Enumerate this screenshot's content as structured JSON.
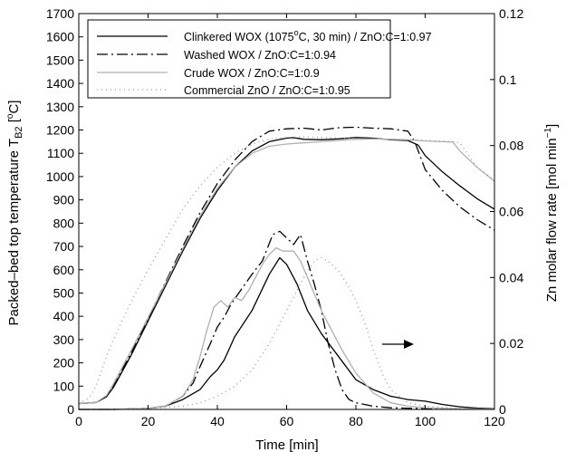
{
  "chart_data": {
    "type": "line",
    "xlabel": "Time [min]",
    "ylabel_left": "Packed–bed top temperature T",
    "ylabel_left_sub": "B2",
    "ylabel_left_unit": "[",
    "ylabel_left_unit_deg": "o",
    "ylabel_left_unit_end": "C]",
    "ylabel_right": "Zn molar flow rate [mol min",
    "ylabel_right_sup": "−1",
    "ylabel_right_end": "]",
    "xlim": [
      0,
      120
    ],
    "ylim_left": [
      0,
      1700
    ],
    "ylim_right": [
      0,
      0.12
    ],
    "x_ticks": [
      "0",
      "20",
      "40",
      "60",
      "80",
      "100",
      "120"
    ],
    "y_left_ticks": [
      "0",
      "100",
      "200",
      "300",
      "400",
      "500",
      "600",
      "700",
      "800",
      "900",
      "1000",
      "1100",
      "1200",
      "1300",
      "1400",
      "1500",
      "1600",
      "1700"
    ],
    "y_right_ticks": [
      "0",
      "0.02",
      "0.04",
      "0.06",
      "0.08",
      "0.1",
      "0.12"
    ],
    "grid": false,
    "legend_position": "top-right",
    "series": [
      {
        "name": "Clinkered WOX (1075",
        "name_sup": "o",
        "name_end": "C, 30 min) / ZnO:C=1:0.97",
        "color": "#000000",
        "style": "solid",
        "temperature": [
          [
            0,
            25
          ],
          [
            5,
            30
          ],
          [
            8,
            55
          ],
          [
            10,
            95
          ],
          [
            15,
            230
          ],
          [
            20,
            380
          ],
          [
            25,
            530
          ],
          [
            30,
            680
          ],
          [
            35,
            820
          ],
          [
            40,
            940
          ],
          [
            45,
            1040
          ],
          [
            50,
            1110
          ],
          [
            55,
            1150
          ],
          [
            60,
            1165
          ],
          [
            62,
            1167
          ],
          [
            65,
            1160
          ],
          [
            70,
            1158
          ],
          [
            75,
            1162
          ],
          [
            80,
            1168
          ],
          [
            85,
            1165
          ],
          [
            90,
            1158
          ],
          [
            95,
            1155
          ],
          [
            98,
            1135
          ],
          [
            100,
            1090
          ],
          [
            105,
            1020
          ],
          [
            110,
            960
          ],
          [
            115,
            905
          ],
          [
            120,
            860
          ]
        ],
        "zn_flow": [
          [
            0,
            0
          ],
          [
            10,
            0
          ],
          [
            20,
            0.0003
          ],
          [
            25,
            0.001
          ],
          [
            30,
            0.003
          ],
          [
            35,
            0.006
          ],
          [
            38,
            0.01
          ],
          [
            40,
            0.012
          ],
          [
            42,
            0.015
          ],
          [
            45,
            0.022
          ],
          [
            50,
            0.03
          ],
          [
            55,
            0.041
          ],
          [
            58,
            0.046
          ],
          [
            60,
            0.044
          ],
          [
            63,
            0.038
          ],
          [
            66,
            0.03
          ],
          [
            70,
            0.023
          ],
          [
            75,
            0.016
          ],
          [
            80,
            0.009
          ],
          [
            85,
            0.006
          ],
          [
            90,
            0.004
          ],
          [
            95,
            0.003
          ],
          [
            100,
            0.0025
          ],
          [
            105,
            0.0015
          ],
          [
            110,
            0.0008
          ],
          [
            115,
            0.0004
          ],
          [
            120,
            0.0002
          ]
        ]
      },
      {
        "name": "Washed WOX / ZnO:C=1:0.94",
        "color": "#000000",
        "style": "dashdot",
        "temperature": [
          [
            0,
            25
          ],
          [
            5,
            30
          ],
          [
            8,
            55
          ],
          [
            10,
            100
          ],
          [
            15,
            240
          ],
          [
            20,
            390
          ],
          [
            25,
            545
          ],
          [
            30,
            700
          ],
          [
            35,
            845
          ],
          [
            40,
            970
          ],
          [
            45,
            1070
          ],
          [
            50,
            1150
          ],
          [
            55,
            1195
          ],
          [
            60,
            1205
          ],
          [
            65,
            1208
          ],
          [
            70,
            1200
          ],
          [
            75,
            1210
          ],
          [
            80,
            1212
          ],
          [
            85,
            1208
          ],
          [
            90,
            1205
          ],
          [
            95,
            1195
          ],
          [
            97,
            1150
          ],
          [
            100,
            1030
          ],
          [
            105,
            940
          ],
          [
            110,
            870
          ],
          [
            115,
            815
          ],
          [
            120,
            770
          ]
        ],
        "zn_flow": [
          [
            0,
            0
          ],
          [
            10,
            0
          ],
          [
            20,
            0.0003
          ],
          [
            25,
            0.001
          ],
          [
            30,
            0.004
          ],
          [
            33,
            0.008
          ],
          [
            35,
            0.013
          ],
          [
            38,
            0.02
          ],
          [
            40,
            0.025
          ],
          [
            42,
            0.028
          ],
          [
            44,
            0.032
          ],
          [
            46,
            0.035
          ],
          [
            48,
            0.038
          ],
          [
            50,
            0.041
          ],
          [
            53,
            0.045
          ],
          [
            56,
            0.053
          ],
          [
            58,
            0.054
          ],
          [
            60,
            0.052
          ],
          [
            62,
            0.05
          ],
          [
            64,
            0.053
          ],
          [
            66,
            0.045
          ],
          [
            68,
            0.038
          ],
          [
            70,
            0.03
          ],
          [
            72,
            0.02
          ],
          [
            74,
            0.012
          ],
          [
            76,
            0.006
          ],
          [
            78,
            0.003
          ],
          [
            80,
            0.002
          ],
          [
            85,
            0.001
          ],
          [
            90,
            0.0005
          ],
          [
            100,
            0.0002
          ],
          [
            110,
            0.0001
          ],
          [
            120,
            0.0001
          ]
        ]
      },
      {
        "name": "Crude WOX / ZnO:C=1:0.9",
        "color": "#b0b0b0",
        "style": "solid",
        "temperature": [
          [
            0,
            25
          ],
          [
            5,
            30
          ],
          [
            8,
            60
          ],
          [
            10,
            110
          ],
          [
            15,
            250
          ],
          [
            20,
            395
          ],
          [
            25,
            540
          ],
          [
            30,
            690
          ],
          [
            35,
            830
          ],
          [
            40,
            950
          ],
          [
            45,
            1040
          ],
          [
            50,
            1100
          ],
          [
            55,
            1130
          ],
          [
            60,
            1140
          ],
          [
            65,
            1145
          ],
          [
            70,
            1150
          ],
          [
            75,
            1155
          ],
          [
            80,
            1160
          ],
          [
            85,
            1162
          ],
          [
            90,
            1160
          ],
          [
            95,
            1158
          ],
          [
            100,
            1153
          ],
          [
            105,
            1150
          ],
          [
            108,
            1148
          ],
          [
            110,
            1110
          ],
          [
            115,
            1040
          ],
          [
            120,
            980
          ]
        ],
        "zn_flow": [
          [
            0,
            0
          ],
          [
            10,
            0
          ],
          [
            20,
            0.0003
          ],
          [
            25,
            0.001
          ],
          [
            30,
            0.004
          ],
          [
            33,
            0.009
          ],
          [
            35,
            0.016
          ],
          [
            37,
            0.024
          ],
          [
            39,
            0.031
          ],
          [
            41,
            0.033
          ],
          [
            43,
            0.031
          ],
          [
            45,
            0.034
          ],
          [
            47,
            0.033
          ],
          [
            49,
            0.036
          ],
          [
            51,
            0.04
          ],
          [
            53,
            0.044
          ],
          [
            55,
            0.047
          ],
          [
            57,
            0.049
          ],
          [
            59,
            0.048
          ],
          [
            62,
            0.048
          ],
          [
            64,
            0.045
          ],
          [
            66,
            0.04
          ],
          [
            68,
            0.035
          ],
          [
            70,
            0.03
          ],
          [
            73,
            0.024
          ],
          [
            76,
            0.018
          ],
          [
            80,
            0.011
          ],
          [
            85,
            0.005
          ],
          [
            90,
            0.002
          ],
          [
            95,
            0.001
          ],
          [
            100,
            0.0005
          ],
          [
            110,
            0.0002
          ],
          [
            120,
            0.0001
          ]
        ]
      },
      {
        "name": "Commercial ZnO / ZnO:C=1:0.95",
        "color": "#999999",
        "style": "dotted",
        "temperature": [
          [
            0,
            25
          ],
          [
            3,
            50
          ],
          [
            5,
            100
          ],
          [
            8,
            230
          ],
          [
            10,
            300
          ],
          [
            15,
            460
          ],
          [
            20,
            600
          ],
          [
            25,
            730
          ],
          [
            30,
            860
          ],
          [
            35,
            960
          ],
          [
            40,
            1040
          ],
          [
            45,
            1100
          ],
          [
            50,
            1140
          ],
          [
            55,
            1160
          ],
          [
            60,
            1168
          ],
          [
            65,
            1170
          ],
          [
            70,
            1168
          ],
          [
            75,
            1166
          ],
          [
            80,
            1164
          ],
          [
            85,
            1162
          ],
          [
            90,
            1160
          ],
          [
            95,
            1158
          ],
          [
            100,
            1155
          ],
          [
            105,
            1152
          ],
          [
            108,
            1150
          ],
          [
            110,
            1145
          ],
          [
            115,
            1040
          ],
          [
            120,
            985
          ]
        ],
        "zn_flow": [
          [
            0,
            0
          ],
          [
            10,
            0
          ],
          [
            20,
            0.0002
          ],
          [
            30,
            0.001
          ],
          [
            35,
            0.002
          ],
          [
            40,
            0.004
          ],
          [
            45,
            0.007
          ],
          [
            50,
            0.012
          ],
          [
            55,
            0.02
          ],
          [
            60,
            0.03
          ],
          [
            65,
            0.04
          ],
          [
            68,
            0.045
          ],
          [
            70,
            0.046
          ],
          [
            72,
            0.045
          ],
          [
            75,
            0.042
          ],
          [
            78,
            0.037
          ],
          [
            80,
            0.033
          ],
          [
            83,
            0.025
          ],
          [
            85,
            0.018
          ],
          [
            88,
            0.01
          ],
          [
            90,
            0.006
          ],
          [
            95,
            0.002
          ],
          [
            100,
            0.001
          ],
          [
            110,
            0.0003
          ],
          [
            120,
            0.0001
          ]
        ]
      }
    ]
  }
}
